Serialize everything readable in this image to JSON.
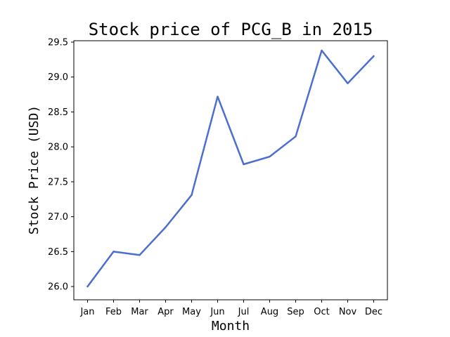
{
  "chart_data": {
    "type": "line",
    "title": "Stock price of PCG_B in 2015",
    "xlabel": "Month",
    "ylabel": "Stock Price (USD)",
    "categories": [
      "Jan",
      "Feb",
      "Mar",
      "Apr",
      "May",
      "Jun",
      "Jul",
      "Aug",
      "Sep",
      "Oct",
      "Nov",
      "Dec"
    ],
    "series": [
      {
        "values": [
          26.0,
          26.5,
          26.45,
          26.85,
          27.31,
          28.72,
          27.75,
          27.86,
          28.15,
          29.38,
          28.91,
          29.3
        ]
      }
    ],
    "yticks": [
      "26.0",
      "26.5",
      "27.0",
      "27.5",
      "28.0",
      "28.5",
      "29.0",
      "29.5"
    ],
    "ylim": [
      25.81,
      29.52
    ],
    "grid": false,
    "line_color": "#4c6fcf"
  }
}
